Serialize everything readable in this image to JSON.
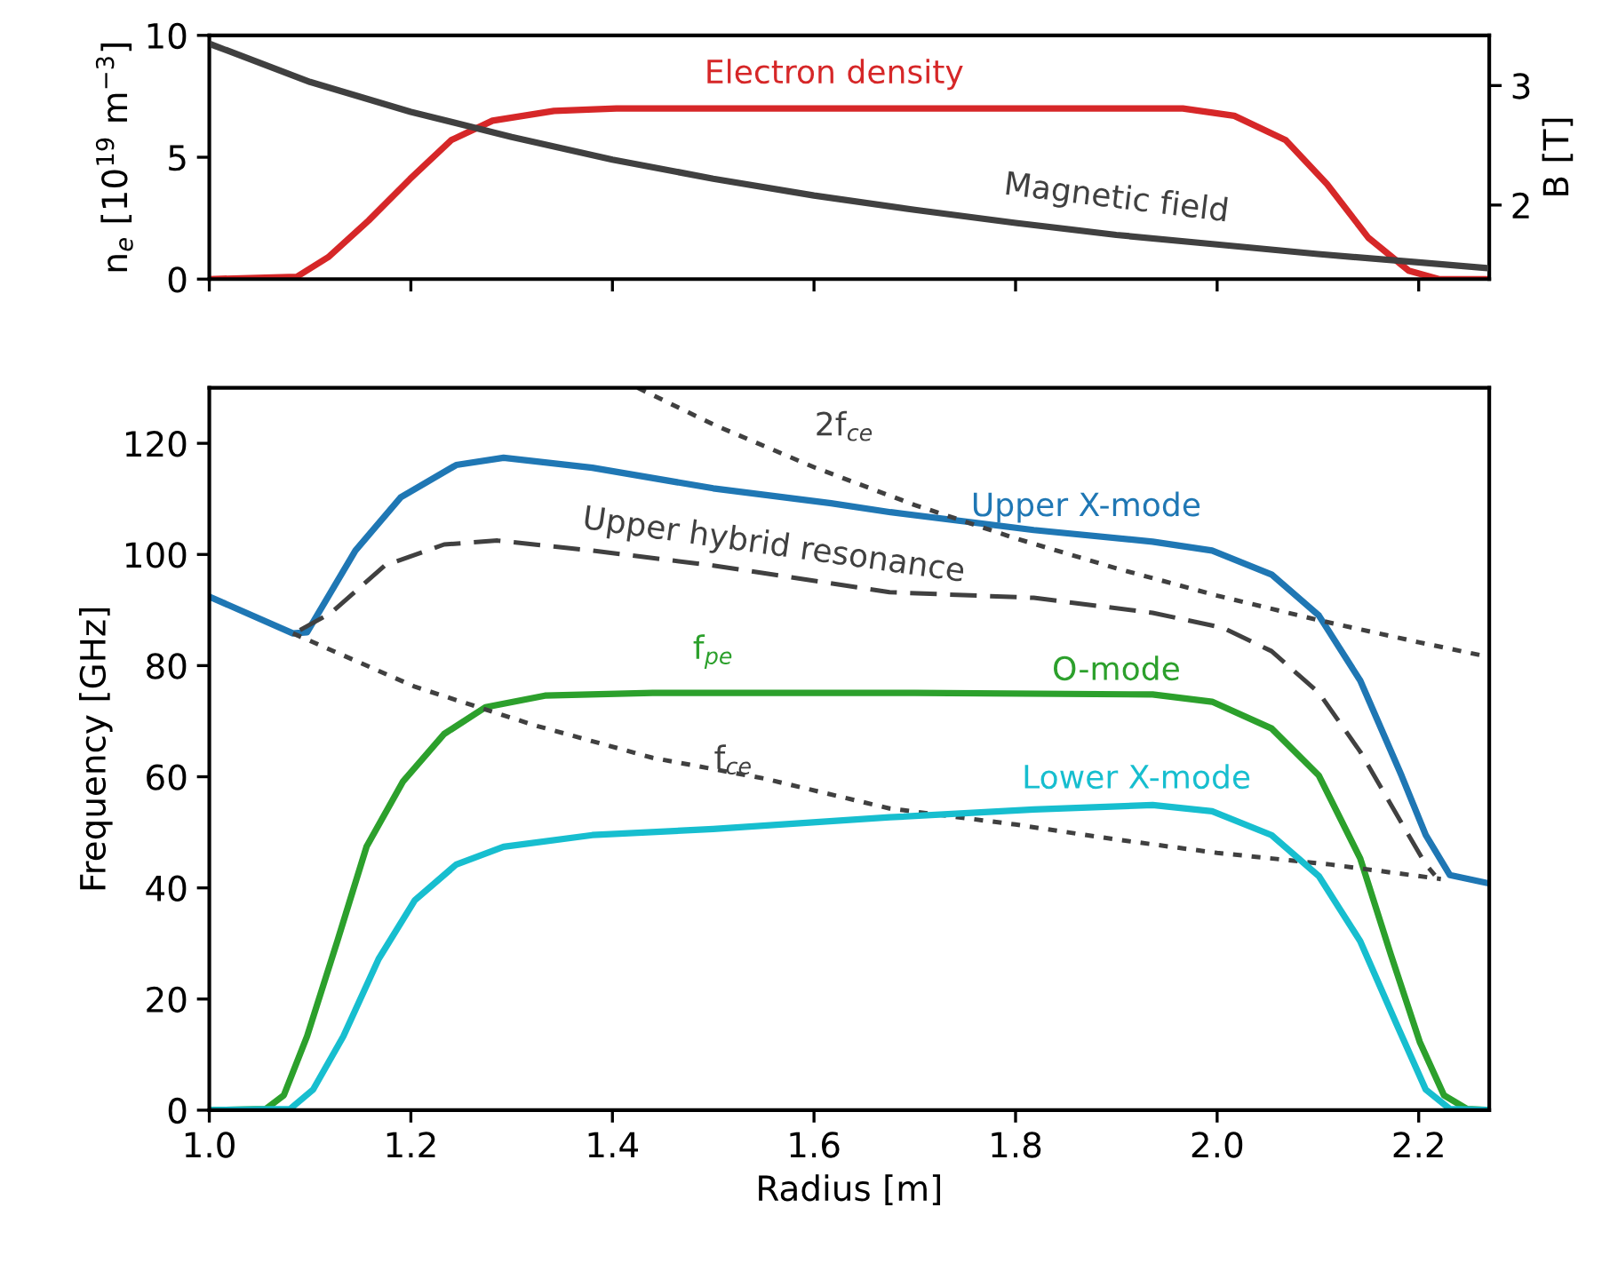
{
  "chart_data": [
    {
      "type": "line",
      "xlim": [
        1.0,
        2.27
      ],
      "xticks": [
        {
          "value": 1.0,
          "label": null
        },
        {
          "value": 1.2,
          "label": null
        },
        {
          "value": 1.4,
          "label": null
        },
        {
          "value": 1.6,
          "label": null
        },
        {
          "value": 1.8,
          "label": null
        },
        {
          "value": 2.0,
          "label": null
        },
        {
          "value": 2.2,
          "label": null
        }
      ],
      "ylim": [
        0,
        10
      ],
      "yticks": [
        0,
        5,
        10
      ],
      "y2lim": [
        1.38,
        3.42
      ],
      "y2ticks": [
        2,
        3
      ],
      "ylabel": "n$_{e}$ [10$^{19}$ m$^{−3}$]",
      "y2label": "B [T]",
      "tick_labels": "y",
      "grid": false,
      "legend": false,
      "marker": "none",
      "series": [
        {
          "name": "Electron density",
          "color": "#d62728",
          "line_style": "solid",
          "x": [
            1.0,
            1.087,
            1.118,
            1.158,
            1.199,
            1.24,
            1.281,
            1.342,
            1.404,
            1.6,
            1.8,
            1.966,
            2.017,
            2.068,
            2.109,
            2.15,
            2.19,
            2.22,
            2.27
          ],
          "values": [
            0,
            0.1,
            0.9,
            2.4,
            4.1,
            5.7,
            6.5,
            6.9,
            7.0,
            7.0,
            7.0,
            7.0,
            6.7,
            5.7,
            3.9,
            1.7,
            0.35,
            0,
            0
          ]
        },
        {
          "name": "Magnetic field",
          "color": "#404040",
          "line_style": "solid",
          "axis": "y2",
          "x": [
            1.0,
            1.1,
            1.2,
            1.3,
            1.4,
            1.5,
            1.6,
            1.7,
            1.8,
            1.9,
            2.0,
            2.1,
            2.2,
            2.27
          ],
          "values": [
            3.35,
            3.03,
            2.78,
            2.57,
            2.38,
            2.22,
            2.08,
            1.96,
            1.85,
            1.75,
            1.67,
            1.59,
            1.52,
            1.47
          ]
        }
      ]
    },
    {
      "type": "line",
      "xlim": [
        1.0,
        2.27
      ],
      "xticks": [
        {
          "value": 1.0,
          "label": "1.0"
        },
        {
          "value": 1.2,
          "label": "1.2"
        },
        {
          "value": 1.4,
          "label": "1.4"
        },
        {
          "value": 1.6,
          "label": "1.6"
        },
        {
          "value": 1.8,
          "label": "1.8"
        },
        {
          "value": 2.0,
          "label": "2.0"
        },
        {
          "value": 2.2,
          "label": "2.2"
        }
      ],
      "ylim": [
        0,
        130
      ],
      "yticks": [
        0,
        20,
        40,
        60,
        80,
        100,
        120
      ],
      "xlabel": "Radius [m]",
      "ylabel": "Frequency [GHz]",
      "grid": false,
      "legend": false,
      "marker": "none",
      "annotations": [
        {
          "text": "f$_{pe}$",
          "x": 1.5,
          "y": 75
        }
      ],
      "series": [
        {
          "name": "Upper X-mode",
          "color": "#1f77b4",
          "line_style": "solid",
          "x": [
            1.0,
            1.083,
            1.097,
            1.145,
            1.19,
            1.245,
            1.292,
            1.38,
            1.5,
            1.617,
            1.676,
            1.818,
            1.936,
            1.995,
            2.054,
            2.101,
            2.142,
            2.183,
            2.207,
            2.231,
            2.27
          ],
          "values": [
            92.4,
            85.8,
            86.0,
            100.7,
            110.3,
            116.1,
            117.4,
            115.6,
            111.9,
            109.2,
            107.6,
            104.4,
            102.3,
            100.7,
            96.4,
            89.0,
            77.3,
            60.2,
            49.5,
            42.3,
            40.8
          ]
        },
        {
          "name": "Upper hybrid resonance",
          "color": "#404040",
          "line_style": "dashed",
          "x": [
            1.09,
            1.121,
            1.174,
            1.233,
            1.286,
            1.38,
            1.5,
            1.675,
            1.818,
            1.936,
            2.006,
            2.054,
            2.101,
            2.142,
            2.183,
            2.207,
            2.216
          ],
          "values": [
            86.4,
            89.5,
            98.0,
            101.8,
            102.5,
            100.7,
            98.0,
            93.2,
            92.2,
            89.5,
            86.8,
            82.6,
            75.1,
            64.5,
            51.7,
            44.2,
            42.3
          ]
        },
        {
          "name": "2f$_{ce}$",
          "color": "#404040",
          "line_style": "dotted",
          "x": [
            1.425,
            1.5,
            1.6,
            1.7,
            1.8,
            1.9,
            2.0,
            2.1,
            2.2,
            2.266
          ],
          "values": [
            130,
            123.4,
            115.7,
            108.9,
            102.9,
            97.5,
            92.6,
            88.2,
            84.2,
            81.7
          ]
        },
        {
          "name": "O-mode",
          "color": "#2ca02c",
          "line_style": "solid",
          "x": [
            1.0,
            1.056,
            1.074,
            1.097,
            1.127,
            1.156,
            1.192,
            1.233,
            1.274,
            1.333,
            1.44,
            1.7,
            1.936,
            1.995,
            2.054,
            2.101,
            2.142,
            2.172,
            2.201,
            2.225,
            2.248,
            2.27
          ],
          "values": [
            0,
            0.2,
            2.7,
            13.3,
            30.4,
            47.4,
            59.1,
            67.7,
            72.5,
            74.6,
            75.1,
            75.1,
            74.8,
            73.5,
            68.7,
            60.2,
            45.3,
            28.2,
            12.3,
            2.7,
            0.2,
            0
          ]
        },
        {
          "name": "f$_{ce}$",
          "color": "#404040",
          "line_style": "dotted",
          "x": [
            1.083,
            1.204,
            1.322,
            1.44,
            1.55,
            1.675,
            1.8,
            1.9,
            2.0,
            2.113,
            2.222
          ],
          "values": [
            85.8,
            76.2,
            69.3,
            63.4,
            59.7,
            54.3,
            51.4,
            48.7,
            46.3,
            44.2,
            41.6
          ]
        },
        {
          "name": "Lower X-mode",
          "color": "#17becf",
          "line_style": "solid",
          "x": [
            1.0,
            1.08,
            1.103,
            1.133,
            1.168,
            1.204,
            1.245,
            1.292,
            1.38,
            1.5,
            1.675,
            1.818,
            1.936,
            1.995,
            2.054,
            2.101,
            2.142,
            2.178,
            2.207,
            2.231,
            2.27
          ],
          "values": [
            0,
            0.2,
            3.7,
            13.3,
            27.2,
            37.8,
            44.2,
            47.4,
            49.5,
            50.6,
            52.7,
            54.1,
            54.9,
            53.8,
            49.5,
            42.1,
            30.4,
            15.5,
            3.7,
            0.2,
            0
          ]
        }
      ]
    }
  ]
}
